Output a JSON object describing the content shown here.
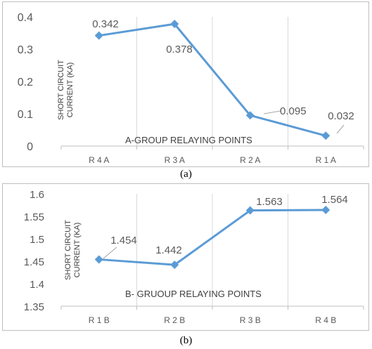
{
  "chart_data": [
    {
      "type": "line",
      "categories": [
        "R 4 A",
        "R 3 A",
        "R 2 A",
        "R 1 A"
      ],
      "series": [
        {
          "values": [
            0.342,
            0.378,
            0.095,
            0.032
          ],
          "color": "#5b9bd5"
        }
      ],
      "data_labels": [
        "0.342",
        "0.378",
        "0.095",
        "0.032"
      ],
      "ylabel_lines": [
        "SHORT CIRCUIT",
        "CURRENT (KA)"
      ],
      "xlabel": "A-GROUP RELAYING POINTS",
      "ylim": [
        0,
        0.4
      ],
      "yticks": [
        0,
        0.1,
        0.2,
        0.3,
        0.4
      ],
      "ytick_labels": [
        "0",
        "0.1",
        "0.2",
        "0.3",
        "0.4"
      ],
      "grid": "vertical",
      "caption": "(a)"
    },
    {
      "type": "line",
      "categories": [
        "R 1 B",
        "R 2 B",
        "R 3 B",
        "R 4 B"
      ],
      "series": [
        {
          "values": [
            1.454,
            1.442,
            1.563,
            1.564
          ],
          "color": "#5b9bd5"
        }
      ],
      "data_labels": [
        "1.454",
        "1.442",
        "1.563",
        "1.564"
      ],
      "ylabel_lines": [
        "SHORT CIRCUIT",
        "CURRENT (KA)"
      ],
      "xlabel": "B- GRUOUP RELAYING POINTS",
      "ylim": [
        1.35,
        1.6
      ],
      "yticks": [
        1.35,
        1.4,
        1.45,
        1.5,
        1.55,
        1.6
      ],
      "ytick_labels": [
        "1.35",
        "1.4",
        "1.45",
        "1.5",
        "1.55",
        "1.6"
      ],
      "grid": "vertical",
      "caption": "(b)"
    }
  ]
}
